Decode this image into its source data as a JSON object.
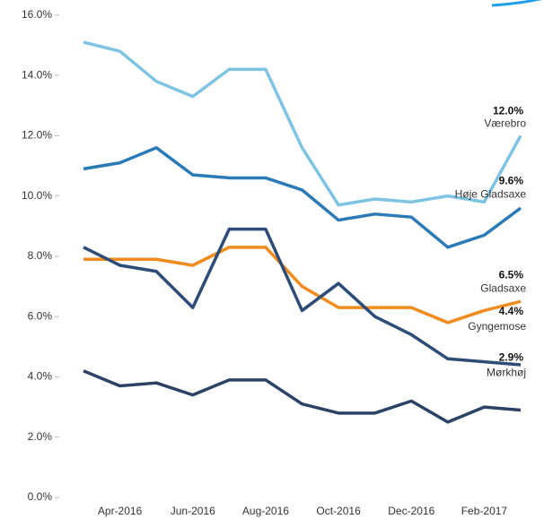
{
  "chart_data": {
    "type": "line",
    "categories": [
      null,
      "Apr-2016",
      null,
      "Jun-2016",
      null,
      "Aug-2016",
      null,
      "Oct-2016",
      null,
      "Dec-2016",
      null,
      "Feb-2017",
      null
    ],
    "ylim": [
      0,
      16.5
    ],
    "yticks": [
      {
        "value": 0,
        "label": "0.0%"
      },
      {
        "value": 2,
        "label": "2.0%"
      },
      {
        "value": 4,
        "label": "4.0%"
      },
      {
        "value": 6,
        "label": "6.0%"
      },
      {
        "value": 8,
        "label": "8.0%"
      },
      {
        "value": 10,
        "label": "10.0%"
      },
      {
        "value": 12,
        "label": "12.0%"
      },
      {
        "value": 14,
        "label": "14.0%"
      },
      {
        "value": 16,
        "label": "16.0%"
      }
    ],
    "series": [
      {
        "name": "Værebro",
        "color": "#7fc3e3",
        "values": [
          15.1,
          14.8,
          13.8,
          13.3,
          14.2,
          14.2,
          11.6,
          9.7,
          9.9,
          9.8,
          10.0,
          9.8,
          12.0
        ],
        "value_labels": [
          null,
          null,
          null,
          null,
          null,
          null,
          null,
          null,
          null,
          null,
          null,
          null,
          "12.0%"
        ]
      },
      {
        "name": "Høje Gladsaxe",
        "color": "#2a7ab8",
        "values": [
          10.9,
          11.1,
          11.6,
          10.7,
          10.6,
          10.6,
          10.2,
          9.2,
          9.4,
          9.3,
          8.3,
          8.7,
          9.6
        ],
        "value_labels": [
          null,
          null,
          null,
          null,
          null,
          null,
          null,
          null,
          null,
          null,
          null,
          null,
          "9.6%"
        ]
      },
      {
        "name": "Gladsaxe",
        "color": "#f28b1e",
        "values": [
          7.9,
          7.9,
          7.9,
          7.7,
          8.3,
          8.3,
          7.0,
          6.3,
          6.3,
          6.3,
          5.8,
          6.2,
          6.5
        ],
        "value_labels": [
          null,
          null,
          null,
          null,
          null,
          null,
          null,
          null,
          null,
          null,
          null,
          null,
          "6.5%"
        ]
      },
      {
        "name": "Gyngemose",
        "color": "#2d4d78",
        "values": [
          8.3,
          7.7,
          7.5,
          6.3,
          8.9,
          8.9,
          6.2,
          7.1,
          6.0,
          5.4,
          4.6,
          4.5,
          4.4
        ],
        "value_labels": [
          null,
          null,
          null,
          null,
          null,
          null,
          null,
          null,
          null,
          null,
          null,
          null,
          "4.4%"
        ]
      },
      {
        "name": "Mørkhøj",
        "color": "#2b4266",
        "values": [
          4.2,
          3.7,
          3.8,
          3.4,
          3.9,
          3.9,
          3.1,
          2.8,
          2.8,
          3.2,
          2.5,
          3.0,
          2.9
        ],
        "value_labels": [
          null,
          null,
          null,
          null,
          null,
          null,
          null,
          null,
          null,
          null,
          null,
          null,
          "2.9%"
        ]
      }
    ]
  }
}
